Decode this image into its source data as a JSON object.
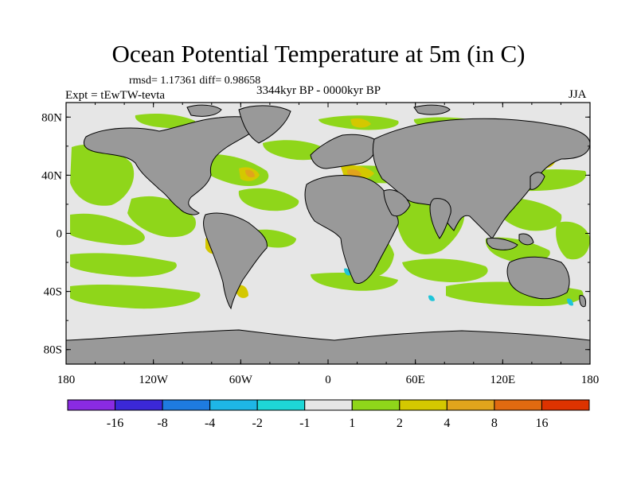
{
  "title": "Ocean Potential Temperature at 5m (in C)",
  "stats": "rmsd= 1.17361 diff= 0.98658",
  "experiment": "Expt = tEwTW-tevta",
  "period": "3344kyr BP - 0000kyr BP",
  "season": "JJA",
  "map": {
    "lon_range": [
      -180,
      180
    ],
    "lat_range": [
      -90,
      90
    ],
    "x_ticks": [
      {
        "lon": -180,
        "label": "180"
      },
      {
        "lon": -120,
        "label": "120W"
      },
      {
        "lon": -60,
        "label": "60W"
      },
      {
        "lon": 0,
        "label": "0"
      },
      {
        "lon": 60,
        "label": "60E"
      },
      {
        "lon": 120,
        "label": "120E"
      },
      {
        "lon": 180,
        "label": "180"
      }
    ],
    "y_ticks": [
      {
        "lat": 80,
        "label": "80N"
      },
      {
        "lat": 40,
        "label": "40N"
      },
      {
        "lat": 0,
        "label": "0"
      },
      {
        "lat": -40,
        "label": "40S"
      },
      {
        "lat": -80,
        "label": "80S"
      }
    ],
    "colors": {
      "land": "#999999",
      "ocean_neutral": "#e6e6e6",
      "warm_1_2": "#8fd61a",
      "warm_2_4": "#d4c800",
      "warm_4_8": "#e1a41c",
      "cool": "#1fc5d9"
    }
  },
  "colorbar": {
    "labels": [
      "-16",
      "-8",
      "-4",
      "-2",
      "-1",
      "1",
      "2",
      "4",
      "8",
      "16"
    ],
    "colors": [
      "#8a2be2",
      "#3b28d8",
      "#1e7be0",
      "#1eb6e6",
      "#1ed6d6",
      "#e6e6e6",
      "#8fd61a",
      "#d4c800",
      "#e1a41c",
      "#e16a10",
      "#dd3300"
    ]
  }
}
